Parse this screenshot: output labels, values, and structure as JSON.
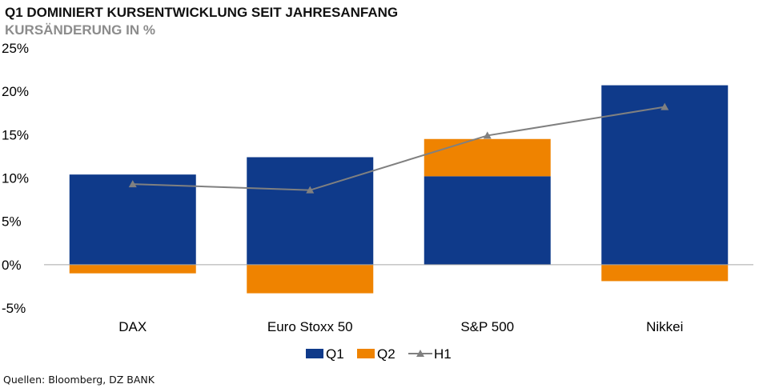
{
  "header": {
    "title": "Q1 DOMINIERT KURSENTWICKLUNG SEIT JAHRESANFANG",
    "subtitle": "KURSÄNDERUNG IN %"
  },
  "source": "Quellen: Bloomberg, DZ BANK",
  "colors": {
    "q1": "#0f3a8a",
    "q2": "#ef8300",
    "h1": "#808080"
  },
  "chart_data": {
    "type": "bar",
    "stacked": true,
    "title": "Q1 DOMINIERT KURSENTWICKLUNG SEIT JAHRESANFANG",
    "subtitle": "KURSÄNDERUNG IN %",
    "categories": [
      "DAX",
      "Euro Stoxx 50",
      "S&P 500",
      "Nikkei"
    ],
    "series": [
      {
        "name": "Q1",
        "type": "bar",
        "values": [
          10.4,
          12.4,
          10.2,
          20.7
        ]
      },
      {
        "name": "Q2",
        "type": "bar",
        "values": [
          -1.0,
          -3.3,
          4.3,
          -1.9
        ]
      },
      {
        "name": "H1",
        "type": "line",
        "marker": "triangle",
        "values": [
          9.3,
          8.6,
          14.9,
          18.2
        ]
      }
    ],
    "ylim": [
      -5,
      25
    ],
    "yticks": [
      -5,
      0,
      5,
      10,
      15,
      20,
      25
    ],
    "ytick_labels": [
      "-5%",
      "0%",
      "5%",
      "10%",
      "15%",
      "20%",
      "25%"
    ],
    "legend": [
      "Q1",
      "Q2",
      "H1"
    ],
    "legend_position": "bottom",
    "grid": false
  }
}
